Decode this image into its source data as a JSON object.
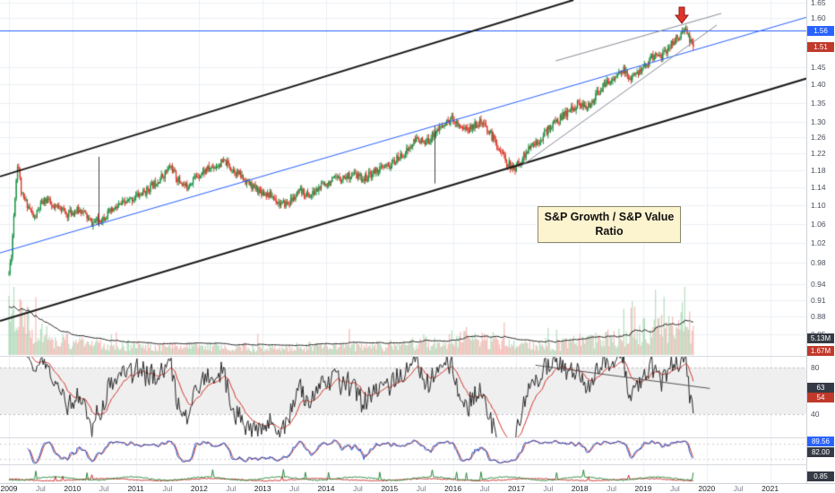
{
  "title_box": {
    "line1": "S&P Growth / S&P Value",
    "line2": "Ratio"
  },
  "colors": {
    "up_candle": "#1e9648",
    "down_candle": "#de3a2e",
    "trend_blue": "#2962ff",
    "channel_black": "#1a1a1a",
    "wedge_gray": "#8a8d98",
    "arrow_red": "#e0352b",
    "label_box_bg": "#fcf3cf"
  },
  "chart_data": {
    "type": "candlestick",
    "title": "S&P Growth / S&P Value Ratio",
    "scale": "log",
    "x_range": [
      2008.86,
      2022.03
    ],
    "y_range": [
      0.83,
      1.658
    ],
    "last_price": 1.51,
    "price_line_level": 1.56,
    "series_anchors": [
      [
        2009.0,
        0.96
      ],
      [
        2009.04,
        1.0
      ],
      [
        2009.1,
        1.13
      ],
      [
        2009.14,
        1.205
      ],
      [
        2009.2,
        1.12
      ],
      [
        2009.3,
        1.1
      ],
      [
        2009.4,
        1.07
      ],
      [
        2009.5,
        1.1
      ],
      [
        2009.6,
        1.115
      ],
      [
        2009.7,
        1.09
      ],
      [
        2009.8,
        1.1
      ],
      [
        2009.9,
        1.08
      ],
      [
        2010.0,
        1.085
      ],
      [
        2010.15,
        1.09
      ],
      [
        2010.3,
        1.06
      ],
      [
        2010.45,
        1.07
      ],
      [
        2010.6,
        1.085
      ],
      [
        2010.75,
        1.1
      ],
      [
        2010.9,
        1.11
      ],
      [
        2011.0,
        1.12
      ],
      [
        2011.15,
        1.13
      ],
      [
        2011.3,
        1.15
      ],
      [
        2011.45,
        1.17
      ],
      [
        2011.55,
        1.19
      ],
      [
        2011.65,
        1.16
      ],
      [
        2011.8,
        1.14
      ],
      [
        2011.9,
        1.16
      ],
      [
        2012.0,
        1.17
      ],
      [
        2012.1,
        1.18
      ],
      [
        2012.25,
        1.19
      ],
      [
        2012.4,
        1.2
      ],
      [
        2012.55,
        1.18
      ],
      [
        2012.7,
        1.16
      ],
      [
        2012.85,
        1.14
      ],
      [
        2013.0,
        1.13
      ],
      [
        2013.15,
        1.12
      ],
      [
        2013.3,
        1.1
      ],
      [
        2013.45,
        1.11
      ],
      [
        2013.6,
        1.13
      ],
      [
        2013.75,
        1.12
      ],
      [
        2013.9,
        1.14
      ],
      [
        2014.0,
        1.15
      ],
      [
        2014.2,
        1.16
      ],
      [
        2014.4,
        1.17
      ],
      [
        2014.6,
        1.16
      ],
      [
        2014.8,
        1.18
      ],
      [
        2015.0,
        1.19
      ],
      [
        2015.15,
        1.21
      ],
      [
        2015.3,
        1.23
      ],
      [
        2015.45,
        1.26
      ],
      [
        2015.55,
        1.24
      ],
      [
        2015.7,
        1.27
      ],
      [
        2015.85,
        1.29
      ],
      [
        2016.0,
        1.31
      ],
      [
        2016.1,
        1.29
      ],
      [
        2016.25,
        1.28
      ],
      [
        2016.4,
        1.3
      ],
      [
        2016.55,
        1.28
      ],
      [
        2016.7,
        1.24
      ],
      [
        2016.85,
        1.2
      ],
      [
        2016.95,
        1.18
      ],
      [
        2017.1,
        1.21
      ],
      [
        2017.25,
        1.24
      ],
      [
        2017.4,
        1.26
      ],
      [
        2017.55,
        1.29
      ],
      [
        2017.7,
        1.31
      ],
      [
        2017.85,
        1.33
      ],
      [
        2018.0,
        1.35
      ],
      [
        2018.1,
        1.33
      ],
      [
        2018.25,
        1.37
      ],
      [
        2018.4,
        1.4
      ],
      [
        2018.55,
        1.42
      ],
      [
        2018.7,
        1.44
      ],
      [
        2018.8,
        1.41
      ],
      [
        2018.9,
        1.43
      ],
      [
        2019.0,
        1.45
      ],
      [
        2019.1,
        1.47
      ],
      [
        2019.2,
        1.49
      ],
      [
        2019.3,
        1.48
      ],
      [
        2019.4,
        1.51
      ],
      [
        2019.5,
        1.53
      ],
      [
        2019.6,
        1.55
      ],
      [
        2019.68,
        1.555
      ],
      [
        2019.74,
        1.53
      ],
      [
        2019.8,
        1.51
      ]
    ],
    "volume_profile": [
      [
        2009.0,
        62
      ],
      [
        2009.25,
        45
      ],
      [
        2009.5,
        26
      ],
      [
        2009.8,
        18
      ],
      [
        2010.2,
        13
      ],
      [
        2011,
        11
      ],
      [
        2012,
        10
      ],
      [
        2013,
        9
      ],
      [
        2014,
        10
      ],
      [
        2015,
        11
      ],
      [
        2015.7,
        15
      ],
      [
        2016,
        20
      ],
      [
        2016.5,
        17
      ],
      [
        2017,
        11
      ],
      [
        2017.6,
        12
      ],
      [
        2018,
        16
      ],
      [
        2018.5,
        20
      ],
      [
        2018.9,
        26
      ],
      [
        2019.2,
        30
      ],
      [
        2019.5,
        38
      ],
      [
        2019.65,
        42
      ],
      [
        2019.8,
        26
      ]
    ],
    "y_axis_ticks": [
      "1.65",
      "1.60",
      "1.45",
      "1.40",
      "1.35",
      "1.30",
      "1.26",
      "1.22",
      "1.18",
      "1.14",
      "1.10",
      "1.06",
      "1.02",
      "0.98",
      "0.94",
      "0.91",
      "0.88",
      "0.85"
    ],
    "x_axis_labels": [
      [
        2009,
        "2009"
      ],
      [
        2009.5,
        "Jul"
      ],
      [
        2010,
        "2010"
      ],
      [
        2010.5,
        "Jul"
      ],
      [
        2011,
        "2011"
      ],
      [
        2011.5,
        "Jul"
      ],
      [
        2012,
        "2012"
      ],
      [
        2012.5,
        "Jul"
      ],
      [
        2013,
        "2013"
      ],
      [
        2013.5,
        "Jul"
      ],
      [
        2014,
        "2014"
      ],
      [
        2014.5,
        "Jul"
      ],
      [
        2015,
        "2015"
      ],
      [
        2015.5,
        "Jul"
      ],
      [
        2016,
        "2016"
      ],
      [
        2016.5,
        "Jul"
      ],
      [
        2017,
        "2017"
      ],
      [
        2017.5,
        "Jul"
      ],
      [
        2018,
        "2018"
      ],
      [
        2018.5,
        "Jul"
      ],
      [
        2019,
        "2019"
      ],
      [
        2019.5,
        "Jul"
      ],
      [
        2020,
        "2020"
      ],
      [
        2020.5,
        "Jul"
      ],
      [
        2021,
        "2021"
      ]
    ],
    "annotations": {
      "hline": {
        "value": 1.56,
        "color": "#2962ff"
      },
      "lines": [
        {
          "name": "channel-top",
          "x1": 2008.86,
          "v1": 1.165,
          "x2": 2017.9,
          "v2": 1.658,
          "color": "#1a1a1a",
          "w": 2
        },
        {
          "name": "channel-bottom",
          "x1": 2008.86,
          "v1": 0.873,
          "x2": 2022.03,
          "v2": 1.442,
          "color": "#1a1a1a",
          "w": 2
        },
        {
          "name": "mid-trendline",
          "x1": 2008.86,
          "v1": 1.0,
          "x2": 2022.03,
          "v2": 1.629,
          "color": "#2962ff",
          "w": 1
        },
        {
          "name": "wedge-top",
          "x1": 2017.62,
          "v1": 1.468,
          "x2": 2020.23,
          "v2": 1.614,
          "color": "#8a8d98",
          "w": 1
        },
        {
          "name": "wedge-bottom",
          "x1": 2017.05,
          "v1": 1.187,
          "x2": 2020.16,
          "v2": 1.577,
          "color": "#8a8d98",
          "w": 1
        }
      ],
      "vlines": [
        {
          "t": 2010.41,
          "v1": 1.212,
          "v2": 1.054
        },
        {
          "t": 2015.71,
          "v1": 1.29,
          "v2": 1.149
        }
      ],
      "rsi_trendline": {
        "t1": 2017.3,
        "v1": 82,
        "t2": 2020.05,
        "v2": 62
      },
      "down_arrow": {
        "t": 2019.6,
        "v": 1.64
      }
    },
    "indicators": {
      "volume": {
        "ma_badge": "5.13M",
        "last_badge": "1.67M"
      },
      "rsi": {
        "axis_ticks": [
          "80",
          "40"
        ],
        "main_badge": "63",
        "signal_badge": "54",
        "band": [
          40,
          80
        ]
      },
      "stoch": {
        "k_badge": "89.56",
        "d_badge": "82.00",
        "guides": [
          80,
          20
        ]
      },
      "pane3": {
        "badge": "0.85"
      }
    }
  }
}
